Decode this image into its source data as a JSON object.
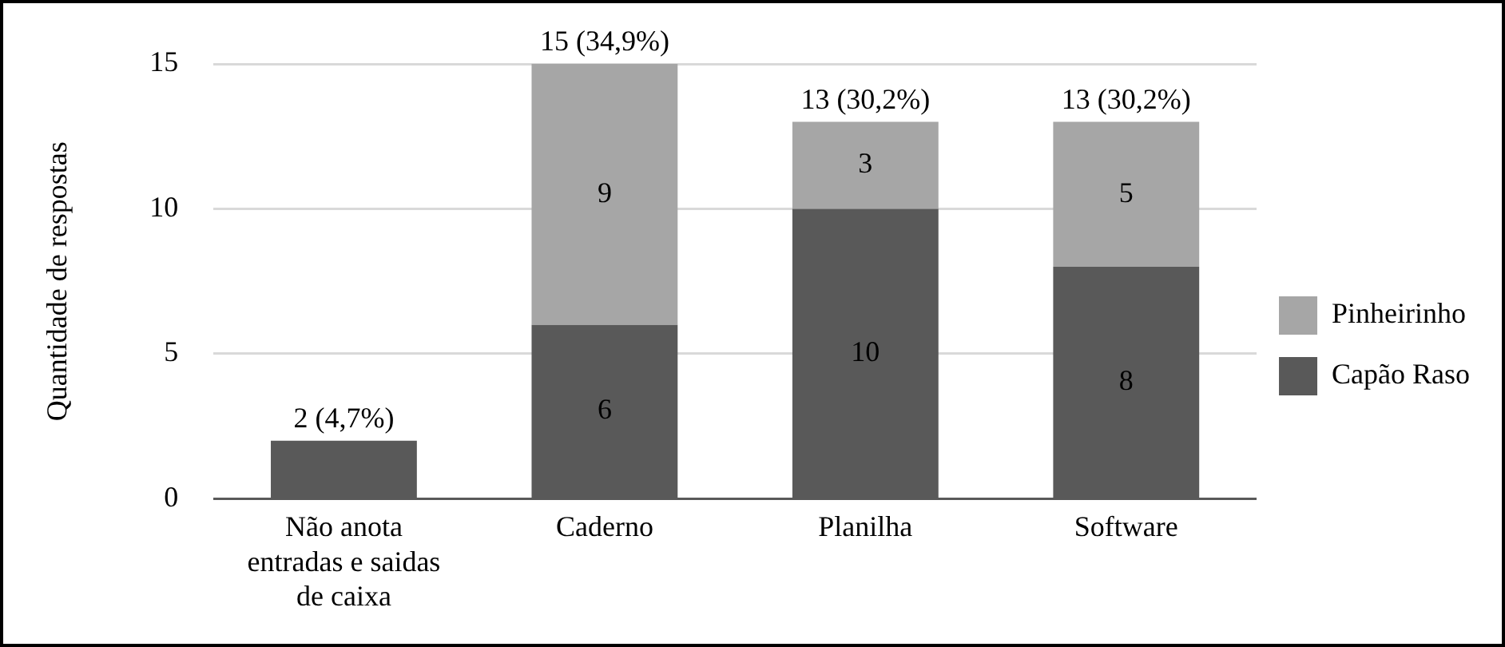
{
  "chart_data": {
    "type": "bar",
    "stacked": true,
    "ylabel": "Quantidade de respostas",
    "categories": [
      "Não anota entradas e saidas de caixa",
      "Caderno",
      "Planilha",
      "Software"
    ],
    "series": [
      {
        "name": "Capão Raso",
        "color": "#595959",
        "values": [
          2,
          6,
          10,
          8
        ],
        "value_labels": [
          null,
          "6",
          "10",
          "8"
        ]
      },
      {
        "name": "Pinheirinho",
        "color": "#a6a6a6",
        "values": [
          0,
          9,
          3,
          5
        ],
        "value_labels": [
          null,
          "9",
          "3",
          "5"
        ]
      }
    ],
    "totals": [
      "2 (4,7%)",
      "15 (34,9%)",
      "13 (30,2%)",
      "13 (30,2%)"
    ],
    "ylim": [
      0,
      15
    ],
    "yticks": [
      0,
      5,
      10,
      15
    ],
    "grid": "y",
    "legend": "right"
  }
}
